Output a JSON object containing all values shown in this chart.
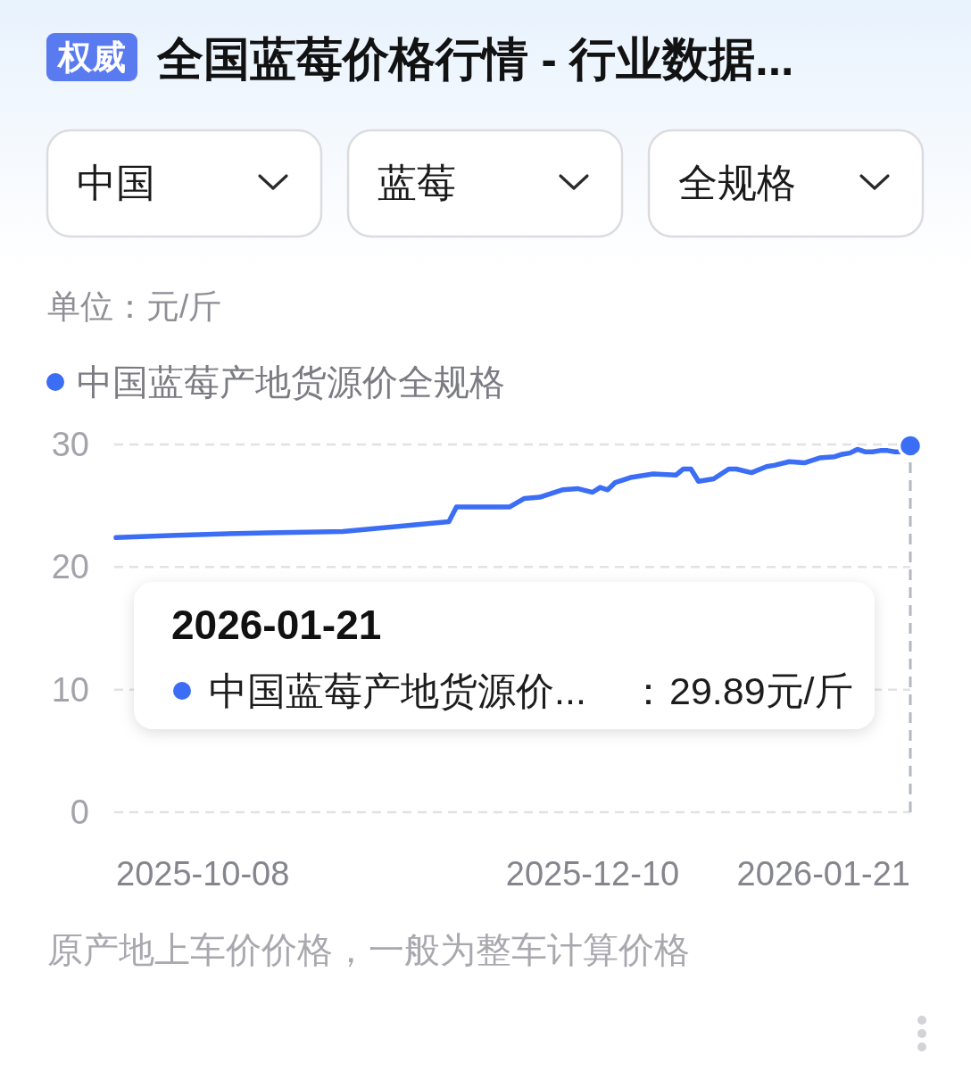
{
  "chart_data": {
    "type": "line",
    "title": "全国蓝莓价格行情 - 行业数据...",
    "ylabel": "单位：元/斤",
    "annotations": [
      "权威",
      "中国",
      "蓝莓",
      "全规格",
      "2026-01-21",
      "中国蓝莓产地货源价...",
      "：",
      "29.89元/斤",
      "原产地上车价价格，一般为整车计算价格"
    ],
    "x": [
      "2025-10-08",
      "2025-10-16",
      "2025-10-28",
      "2025-11-07",
      "2025-11-14",
      "2025-11-21",
      "2025-11-22",
      "2025-11-29",
      "2025-12-01",
      "2025-12-03",
      "2025-12-06",
      "2025-12-08",
      "2025-12-10",
      "2025-12-11",
      "2025-12-12",
      "2025-12-13",
      "2025-12-15",
      "2025-12-18",
      "2025-12-21",
      "2025-12-22",
      "2025-12-23",
      "2025-12-24",
      "2025-12-26",
      "2025-12-28",
      "2025-12-29",
      "2025-12-31",
      "2026-01-02",
      "2026-01-03",
      "2026-01-05",
      "2026-01-07",
      "2026-01-09",
      "2026-01-11",
      "2026-01-12",
      "2026-01-13",
      "2026-01-14",
      "2026-01-15",
      "2026-01-16",
      "2026-01-17",
      "2026-01-18",
      "2026-01-19",
      "2026-01-20",
      "2026-01-21"
    ],
    "series": [
      {
        "name": "中国蓝莓产地货源价全规格",
        "color": "#3b6ef5",
        "values": [
          22.4,
          22.6,
          22.8,
          22.9,
          23.3,
          23.7,
          24.9,
          24.9,
          25.6,
          25.7,
          26.3,
          26.4,
          26.1,
          26.5,
          26.3,
          26.9,
          27.3,
          27.6,
          27.5,
          28.0,
          28.0,
          27.0,
          27.2,
          28.0,
          28.0,
          27.7,
          28.2,
          28.3,
          28.6,
          28.5,
          28.9,
          29.0,
          29.2,
          29.3,
          29.6,
          29.4,
          29.4,
          29.5,
          29.5,
          29.4,
          29.4,
          29.89
        ]
      },
      {
        "type": "scatter",
        "marker": "circle",
        "color": "#3b6ef5",
        "x": [
          "2026-01-21"
        ],
        "values": [
          29.89
        ]
      }
    ],
    "xlim": [
      "2025-10-08",
      "2026-01-21"
    ],
    "xticks": [
      "2025-10-08",
      "2025-12-10",
      "2026-01-21"
    ],
    "ylim": [
      0,
      30
    ],
    "yticks": [
      0,
      10,
      20,
      30
    ],
    "grid": "y",
    "legend": "top left",
    "marker": "none",
    "line_style": "solid",
    "ref_lines": [
      {
        "axis": "x",
        "value": "2026-01-21",
        "color": "#b4b8c0",
        "line_style": "dashed"
      }
    ]
  }
}
